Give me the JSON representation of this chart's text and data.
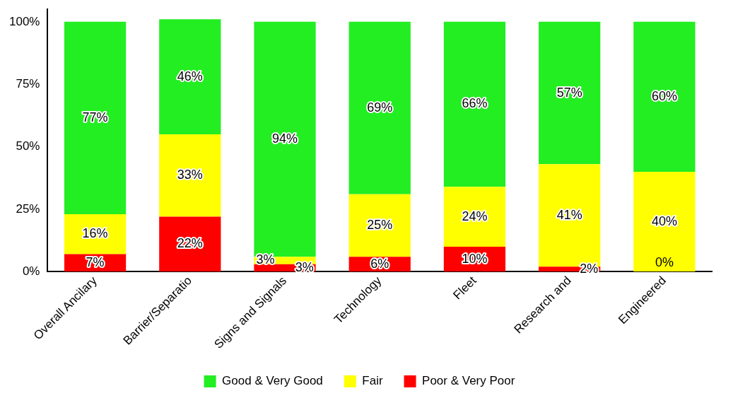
{
  "chart_data": {
    "type": "bar",
    "stacked": true,
    "categories": [
      "Overall Ancilary",
      "Barrier/Separatio",
      "Signs and Signals",
      "Technology",
      "Fleet",
      "Research and",
      "Engineered"
    ],
    "series": [
      {
        "name": "Poor & Very Poor",
        "color": "#ff0000",
        "values": [
          7,
          22,
          3,
          6,
          10,
          2,
          0
        ],
        "value_labels": [
          "7%",
          "22%",
          "3%",
          "6%",
          "10%",
          "2%",
          null
        ]
      },
      {
        "name": "Fair",
        "color": "#ffff00",
        "values": [
          16,
          33,
          3,
          25,
          24,
          41,
          40
        ],
        "value_labels": [
          "16%",
          "33%",
          "3%",
          "25%",
          "24%",
          "41%",
          "40%"
        ]
      },
      {
        "name": "Good & Very Good",
        "color": "#22ee22",
        "values": [
          77,
          46,
          94,
          69,
          66,
          57,
          60
        ],
        "value_labels": [
          "77%",
          "46%",
          "94%",
          "69%",
          "66%",
          "57%",
          "60%"
        ]
      }
    ],
    "annotations": [
      {
        "text": "0%",
        "x": "Engineered",
        "y": 0
      }
    ],
    "ylim": [
      0,
      105
    ],
    "yticks": [
      {
        "value": 0,
        "label": "0%"
      },
      {
        "value": 25,
        "label": "25%"
      },
      {
        "value": 50,
        "label": "50%"
      },
      {
        "value": 75,
        "label": "75%"
      },
      {
        "value": 100,
        "label": "100%"
      }
    ],
    "grid": false,
    "legend": "bottom"
  }
}
